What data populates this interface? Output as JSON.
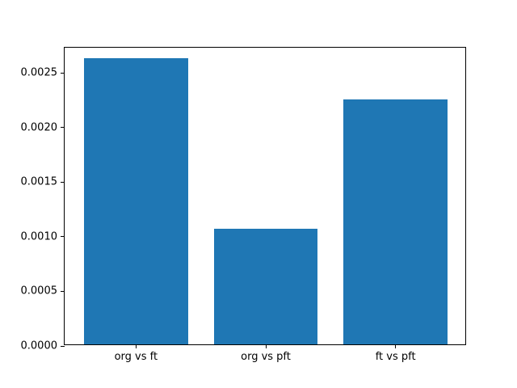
{
  "chart_data": {
    "type": "bar",
    "categories": [
      "org vs ft",
      "org vs pft",
      "ft vs pft"
    ],
    "values": [
      0.00262,
      0.00106,
      0.00224
    ],
    "title": "",
    "xlabel": "",
    "ylabel": "",
    "ylim": [
      0,
      0.00273
    ],
    "xlim": [
      -0.55,
      2.55
    ],
    "yticks": [
      0.0,
      0.0005,
      0.001,
      0.0015,
      0.002,
      0.0025
    ],
    "ytick_labels": [
      "0.0000",
      "0.0005",
      "0.0010",
      "0.0015",
      "0.0020",
      "0.0025"
    ],
    "bar_width_fraction": 0.8,
    "bar_color": "#1f77b4",
    "axis_color": "#000000",
    "background_color": "#ffffff",
    "grid": false,
    "legend": null
  }
}
